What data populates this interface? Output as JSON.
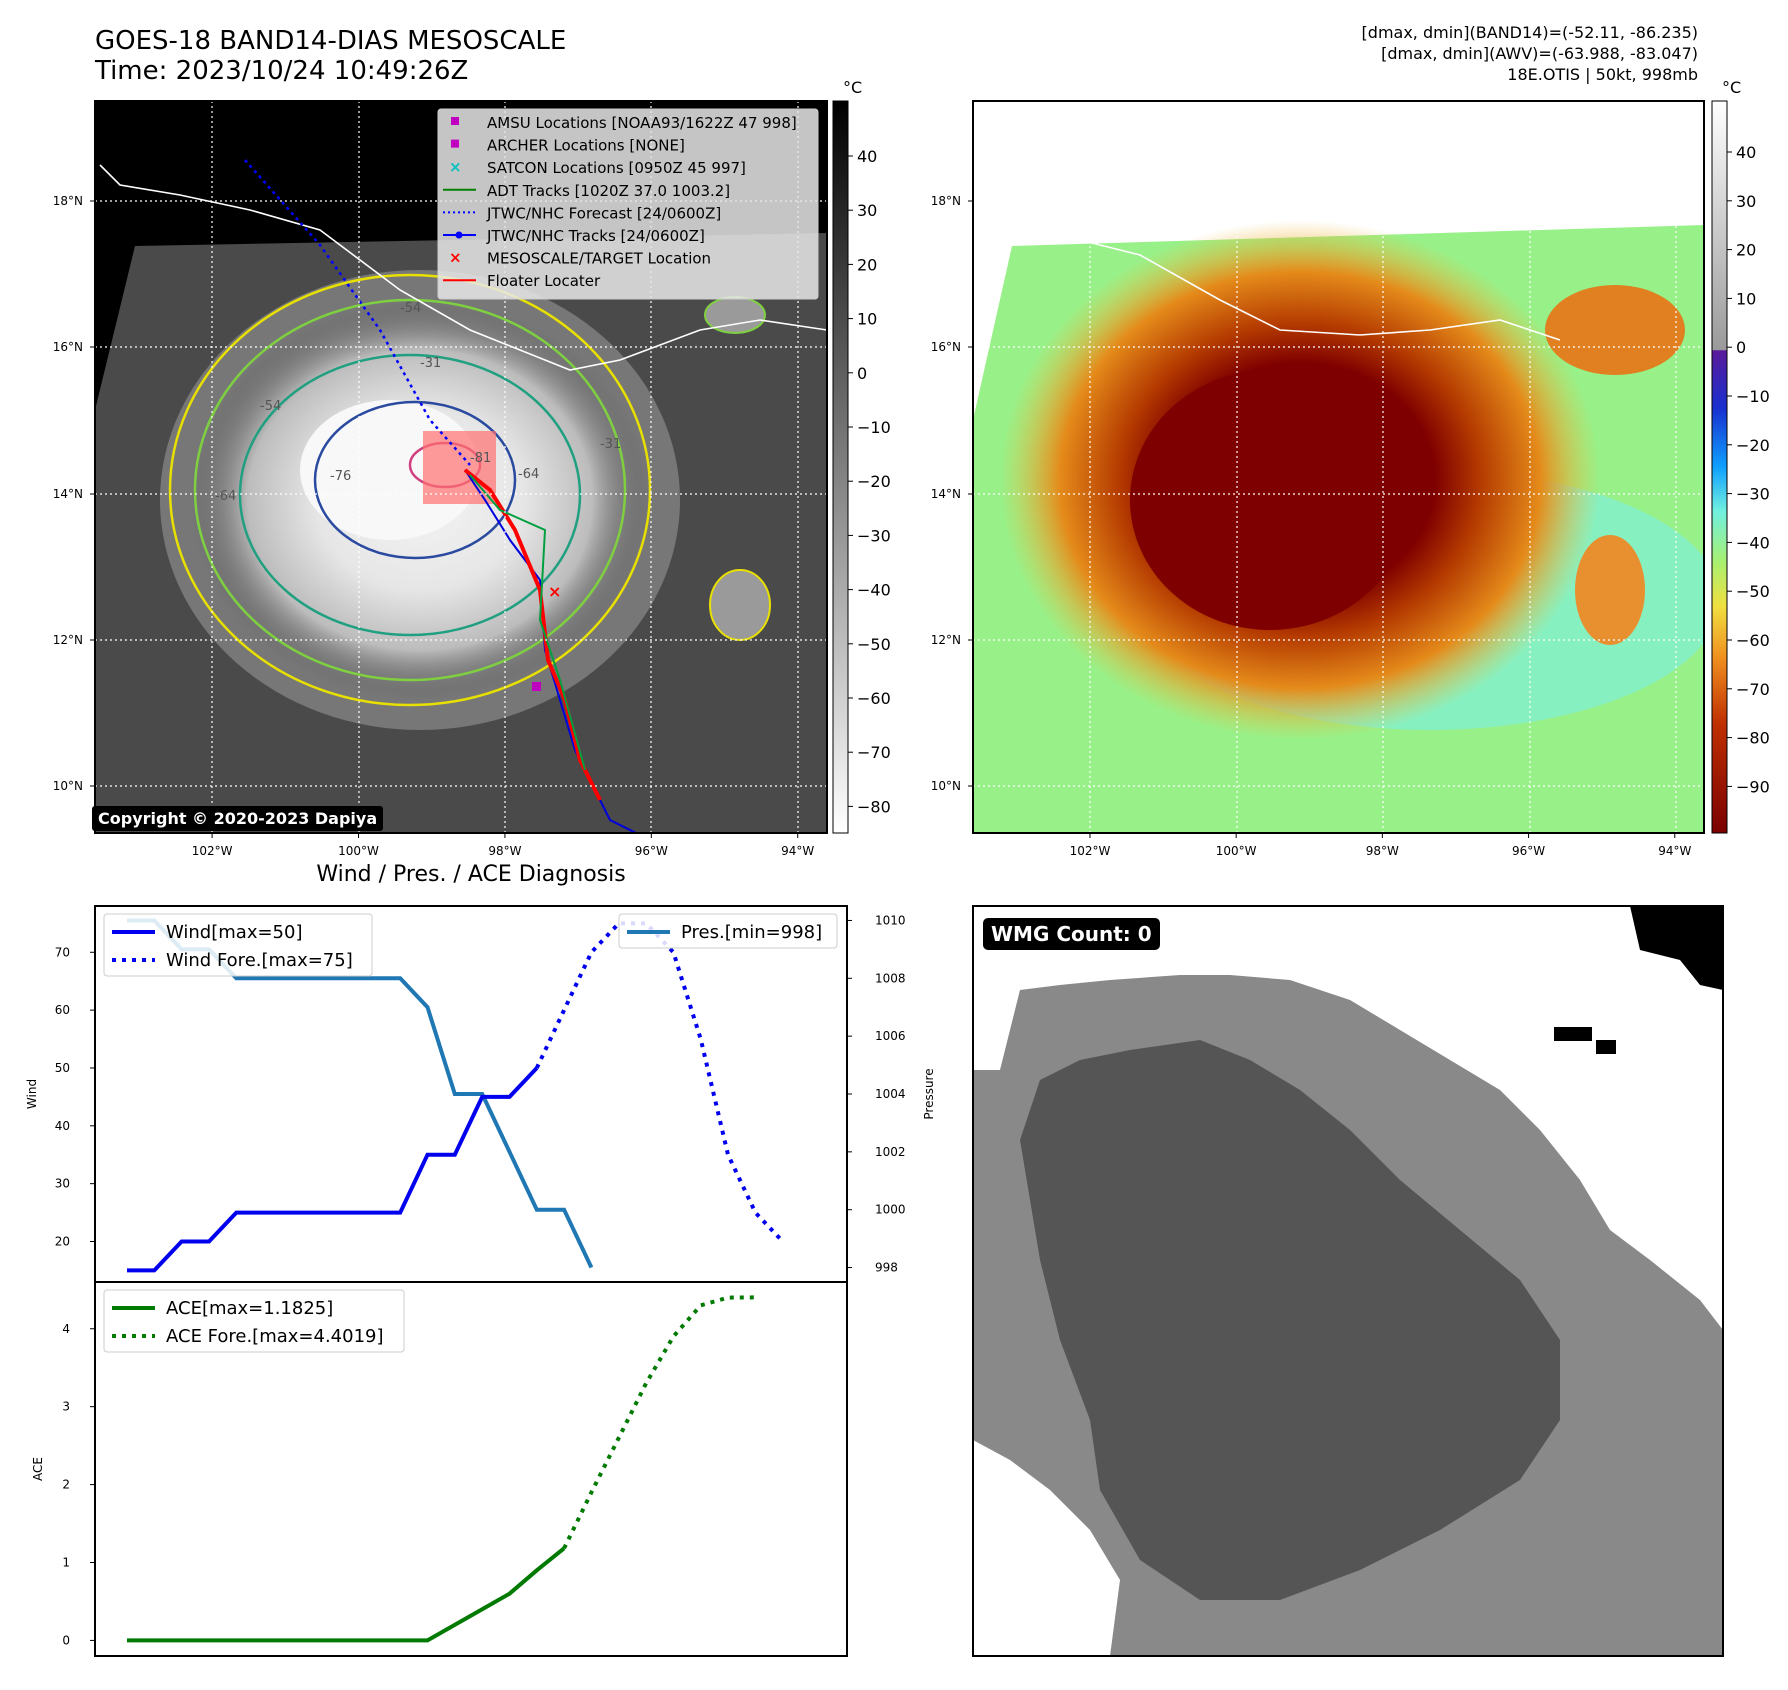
{
  "header": {
    "title_line1": "GOES-18 BAND14-DIAS MESOSCALE",
    "title_line2": "Time: 2023/10/24 10:49:26Z",
    "right_line1": "[dmax, dmin](BAND14)=(-52.11, -86.235)",
    "right_line2": "[dmax, dmin](AWV)=(-63.988, -83.047)",
    "right_line3": "18E.OTIS | 50kt, 998mb"
  },
  "colors": {
    "wind": "#0000ee",
    "pressure": "#1f77b4",
    "ace": "#007a00",
    "track_red": "#ff0000"
  },
  "legend_map": [
    {
      "label": "AMSU Locations [NOAA93/1622Z 47 998]",
      "icon": "square-icon",
      "color": "#c000c0"
    },
    {
      "label": "ARCHER Locations [NONE]",
      "icon": "square-icon",
      "color": "#c000c0"
    },
    {
      "label": "SATCON Locations [0950Z 45 997]",
      "icon": "x-icon",
      "color": "#00c0c0"
    },
    {
      "label": "ADT Tracks [1020Z 37.0 1003.2]",
      "icon": "line-icon",
      "color": "#008000"
    },
    {
      "label": "JTWC/NHC Forecast [24/0600Z]",
      "icon": "dotted-line-icon",
      "color": "#0000ff"
    },
    {
      "label": "JTWC/NHC Tracks [24/0600Z]",
      "icon": "dot-line-icon",
      "color": "#0000ff"
    },
    {
      "label": "MESOSCALE/TARGET Location",
      "icon": "x-icon",
      "color": "#ff0000"
    },
    {
      "label": "Floater Locater",
      "icon": "line-icon",
      "color": "#ff0000"
    }
  ],
  "map_axes": {
    "lat_labels": [
      "18°N",
      "16°N",
      "14°N",
      "12°N",
      "10°N"
    ],
    "lon_labels": [
      "102°W",
      "100°W",
      "98°W",
      "96°W",
      "94°W"
    ]
  },
  "colorbar_left": {
    "unit": "°C",
    "ticks": [
      "40",
      "30",
      "20",
      "10",
      "0",
      "−10",
      "−20",
      "−30",
      "−40",
      "−50",
      "−60",
      "−70",
      "−80"
    ]
  },
  "colorbar_right": {
    "unit": "°C",
    "ticks": [
      "40",
      "30",
      "20",
      "10",
      "0",
      "−10",
      "−20",
      "−30",
      "−40",
      "−50",
      "−60",
      "−70",
      "−80",
      "−90"
    ]
  },
  "copyright": "Copyright © 2020-2023 Dapiya",
  "wmg_label": "WMG Count: 0",
  "contour_labels": [
    "-54",
    "-31",
    "-64",
    "-54",
    "-64",
    "-76",
    "-81",
    "-31"
  ],
  "chart_data": [
    {
      "type": "line",
      "title": "Wind / Pres. / ACE Diagnosis",
      "ylabel": "Wind",
      "ylabel_right": "Pressure",
      "ylim": [
        13,
        78
      ],
      "ylim_right": [
        997.5,
        1010.5
      ],
      "yticks": [
        "20",
        "30",
        "40",
        "50",
        "60",
        "70"
      ],
      "yticks_right": [
        "998",
        "1000",
        "1002",
        "1004",
        "1006",
        "1008",
        "1010"
      ],
      "x": [
        0,
        1,
        2,
        3,
        4,
        5,
        6,
        7,
        8,
        9,
        10,
        11,
        12,
        13,
        14,
        15,
        16,
        17,
        18,
        19,
        20,
        21,
        22,
        23,
        24,
        25
      ],
      "series": [
        {
          "name": "Wind[max=50]",
          "axis": "left",
          "style": "solid",
          "points": [
            [
              0,
              15
            ],
            [
              1,
              15
            ],
            [
              2,
              20
            ],
            [
              3,
              20
            ],
            [
              4,
              25
            ],
            [
              5,
              25
            ],
            [
              6,
              25
            ],
            [
              7,
              25
            ],
            [
              8,
              25
            ],
            [
              9,
              25
            ],
            [
              10,
              25
            ],
            [
              11,
              35
            ],
            [
              12,
              35
            ],
            [
              13,
              45
            ],
            [
              14,
              45
            ],
            [
              15,
              50
            ]
          ]
        },
        {
          "name": "Wind Fore.[max=75]",
          "axis": "left",
          "style": "dotted",
          "points": [
            [
              15,
              50
            ],
            [
              16,
              60
            ],
            [
              17,
              70
            ],
            [
              18,
              75
            ],
            [
              19,
              75
            ],
            [
              20,
              70
            ],
            [
              21,
              55
            ],
            [
              22,
              35
            ],
            [
              23,
              25
            ],
            [
              24,
              20
            ]
          ]
        },
        {
          "name": "Pres.[min=998]",
          "axis": "right",
          "style": "solid",
          "points": [
            [
              0,
              1010
            ],
            [
              1,
              1010
            ],
            [
              2,
              1009
            ],
            [
              3,
              1009
            ],
            [
              4,
              1008
            ],
            [
              5,
              1008
            ],
            [
              6,
              1008
            ],
            [
              7,
              1008
            ],
            [
              8,
              1008
            ],
            [
              9,
              1008
            ],
            [
              10,
              1008
            ],
            [
              11,
              1007
            ],
            [
              12,
              1004
            ],
            [
              13,
              1004
            ],
            [
              14,
              1002
            ],
            [
              15,
              1000
            ],
            [
              16,
              1000
            ],
            [
              17,
              998
            ]
          ]
        }
      ]
    },
    {
      "type": "line",
      "ylabel": "ACE",
      "ylim": [
        -0.2,
        4.6
      ],
      "yticks": [
        "0",
        "1",
        "2",
        "3",
        "4"
      ],
      "series": [
        {
          "name": "ACE[max=1.1825]",
          "style": "solid",
          "points": [
            [
              0,
              0
            ],
            [
              11,
              0
            ],
            [
              13,
              0.4
            ],
            [
              14,
              0.6
            ],
            [
              15,
              0.9
            ],
            [
              16,
              1.1825
            ]
          ]
        },
        {
          "name": "ACE Fore.[max=4.4019]",
          "style": "dotted",
          "points": [
            [
              16,
              1.1825
            ],
            [
              17,
              1.9
            ],
            [
              18,
              2.6
            ],
            [
              19,
              3.3
            ],
            [
              20,
              3.9
            ],
            [
              21,
              4.3
            ],
            [
              22,
              4.4
            ],
            [
              23,
              4.4019
            ]
          ]
        }
      ]
    }
  ]
}
